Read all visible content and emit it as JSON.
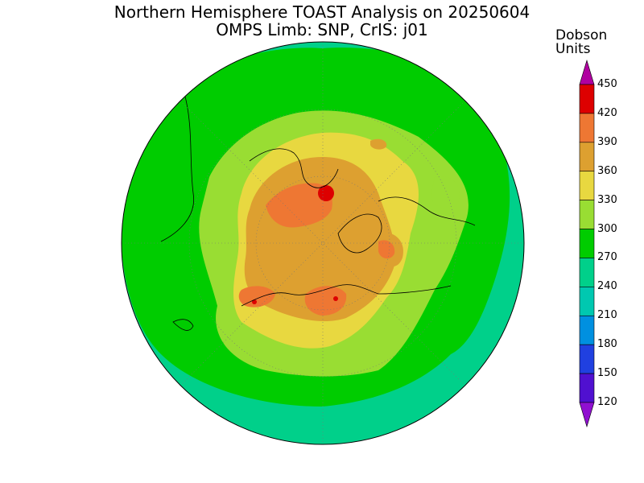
{
  "title": {
    "line1": "Northern Hemisphere TOAST Analysis on 20250604",
    "line2": "OMPS Limb: SNP, CrIS: j01"
  },
  "colorbar": {
    "units_line1": "Dobson",
    "units_line2": "Units",
    "levels": [
      {
        "label": "450",
        "color": "#ff00ff"
      },
      {
        "label": "420",
        "color": "#ee0000"
      },
      {
        "label": "390",
        "color": "#ee7700"
      },
      {
        "label": "360",
        "color": "#dda020"
      },
      {
        "label": "330",
        "color": "#eedd33"
      },
      {
        "label": "300",
        "color": "#99dd33"
      },
      {
        "label": "270",
        "color": "#00cc00"
      },
      {
        "label": "240",
        "color": "#00d080"
      },
      {
        "label": "210",
        "color": "#00b0c8"
      },
      {
        "label": "180",
        "color": "#0080e8"
      },
      {
        "label": "150",
        "color": "#2020e0"
      },
      {
        "label": "120",
        "color": "#7000d0"
      }
    ],
    "bands": [
      "#b000a0",
      "#dd0000",
      "#ee7733",
      "#dda030",
      "#e8d840",
      "#99dd33",
      "#00cc00",
      "#00d08a",
      "#00c8b0",
      "#0090e0",
      "#2040e0",
      "#5010d0",
      "#9010d0"
    ]
  }
}
